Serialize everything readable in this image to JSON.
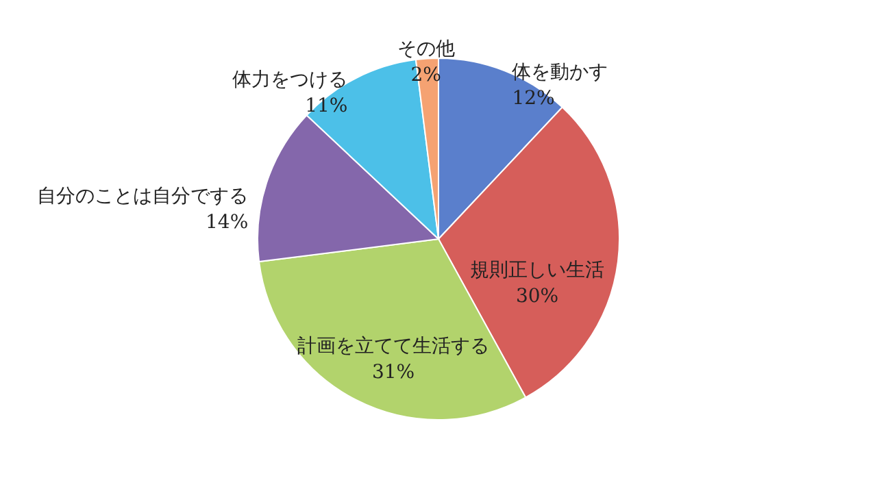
{
  "chart_data": {
    "type": "pie",
    "categories": [
      "体を動かす",
      "規則正しい生活",
      "計画を立てて生活する",
      "自分のことは自分でする",
      "体力をつける",
      "その他"
    ],
    "values": [
      12,
      30,
      31,
      14,
      11,
      2
    ],
    "value_labels": [
      "12%",
      "30%",
      "31%",
      "14%",
      "11%",
      "2%"
    ],
    "colors": [
      "#5a7fcc",
      "#d65e5a",
      "#b2d36c",
      "#8467ab",
      "#4cc0e8",
      "#f5a272"
    ]
  }
}
